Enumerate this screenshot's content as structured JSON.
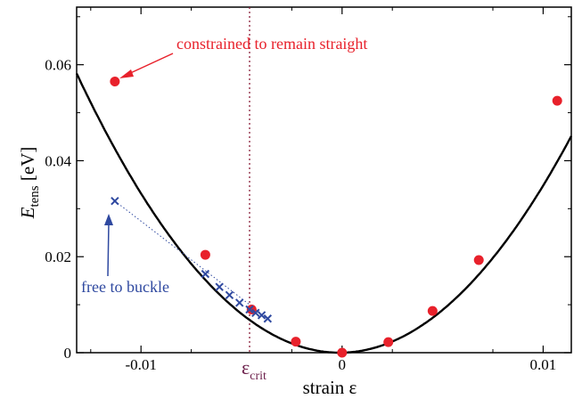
{
  "chart_data": {
    "type": "scatter",
    "xlabel": "strain  ε",
    "ylabel_main": "E",
    "ylabel_sub": "tens",
    "ylabel_unit": " [eV]",
    "xlim": [
      -0.0132,
      0.0114
    ],
    "ylim": [
      0,
      0.072
    ],
    "x_ticks": [
      {
        "value": -0.01,
        "label": "-0.01"
      },
      {
        "value": 0,
        "label": "0"
      },
      {
        "value": 0.01,
        "label": "0.01"
      }
    ],
    "y_ticks": [
      {
        "value": 0,
        "label": "0"
      },
      {
        "value": 0.02,
        "label": "0.02"
      },
      {
        "value": 0.04,
        "label": "0.04"
      },
      {
        "value": 0.06,
        "label": "0.06"
      }
    ],
    "fit_curve": {
      "a": 340,
      "x0": -0.00012
    },
    "series": [
      {
        "marker": "circle",
        "color": "#e8212b",
        "points": [
          {
            "x": -0.0113,
            "y": 0.0565
          },
          {
            "x": -0.0068,
            "y": 0.0204
          },
          {
            "x": -0.0045,
            "y": 0.009
          },
          {
            "x": -0.0023,
            "y": 0.0023
          },
          {
            "x": 0.0,
            "y": 0.0
          },
          {
            "x": 0.0023,
            "y": 0.0022
          },
          {
            "x": 0.0045,
            "y": 0.0087
          },
          {
            "x": 0.0068,
            "y": 0.0193
          },
          {
            "x": 0.0107,
            "y": 0.0525
          }
        ]
      },
      {
        "marker": "cross",
        "color": "#2f49a0",
        "points": [
          {
            "x": -0.0113,
            "y": 0.0316
          },
          {
            "x": -0.0068,
            "y": 0.0164
          },
          {
            "x": -0.0061,
            "y": 0.0137
          },
          {
            "x": -0.0056,
            "y": 0.012
          },
          {
            "x": -0.0051,
            "y": 0.0104
          },
          {
            "x": -0.0046,
            "y": 0.009
          },
          {
            "x": -0.0043,
            "y": 0.0083
          },
          {
            "x": -0.004,
            "y": 0.0078
          },
          {
            "x": -0.0037,
            "y": 0.0071
          }
        ]
      }
    ],
    "critical_strain": {
      "x": -0.0046,
      "label": "ε",
      "sub": "crit",
      "color": "#8a1f3a"
    },
    "annotations": {
      "straight": {
        "text": "constrained to remain straight",
        "color": "#e8212b"
      },
      "buckle": {
        "text": "free to buckle",
        "color": "#2f49a0"
      }
    }
  }
}
